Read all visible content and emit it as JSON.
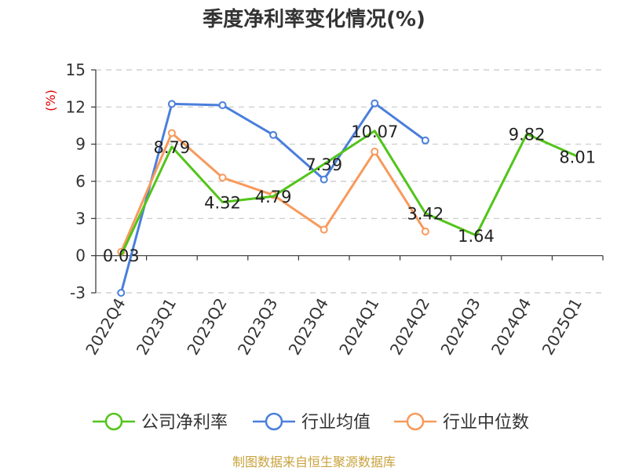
{
  "chart_data": {
    "type": "line",
    "title": "季度净利率变化情况(%)",
    "y_unit_label": "(%)",
    "categories": [
      "2022Q4",
      "2023Q1",
      "2023Q2",
      "2023Q3",
      "2023Q4",
      "2024Q1",
      "2024Q2",
      "2024Q3",
      "2024Q4",
      "2025Q1"
    ],
    "ylim": [
      -3,
      15
    ],
    "yticks": [
      -3,
      0,
      3,
      6,
      9,
      12,
      15
    ],
    "grid": true,
    "legend_position": "bottom",
    "series": [
      {
        "name": "公司净利率",
        "color": "#52c41a",
        "values": [
          0.03,
          8.79,
          4.32,
          4.79,
          7.39,
          10.07,
          3.42,
          1.64,
          9.82,
          8.01
        ],
        "labels": [
          "0.03",
          "8.79",
          "4.32",
          "4.79",
          "7.39",
          "10.07",
          "3.42",
          "1.64",
          "9.82",
          "8.01"
        ],
        "markers": false
      },
      {
        "name": "行业均值",
        "color": "#4a7fdb",
        "values": [
          -3.0,
          12.25,
          12.15,
          9.75,
          6.15,
          12.3,
          9.3,
          null,
          null,
          null
        ],
        "markers": true
      },
      {
        "name": "行业中位数",
        "color": "#f79a5c",
        "values": [
          0.3,
          9.9,
          6.3,
          4.9,
          2.1,
          8.4,
          1.95,
          null,
          null,
          null
        ],
        "markers": true
      }
    ]
  },
  "source": "制图数据来自恒生聚源数据库"
}
